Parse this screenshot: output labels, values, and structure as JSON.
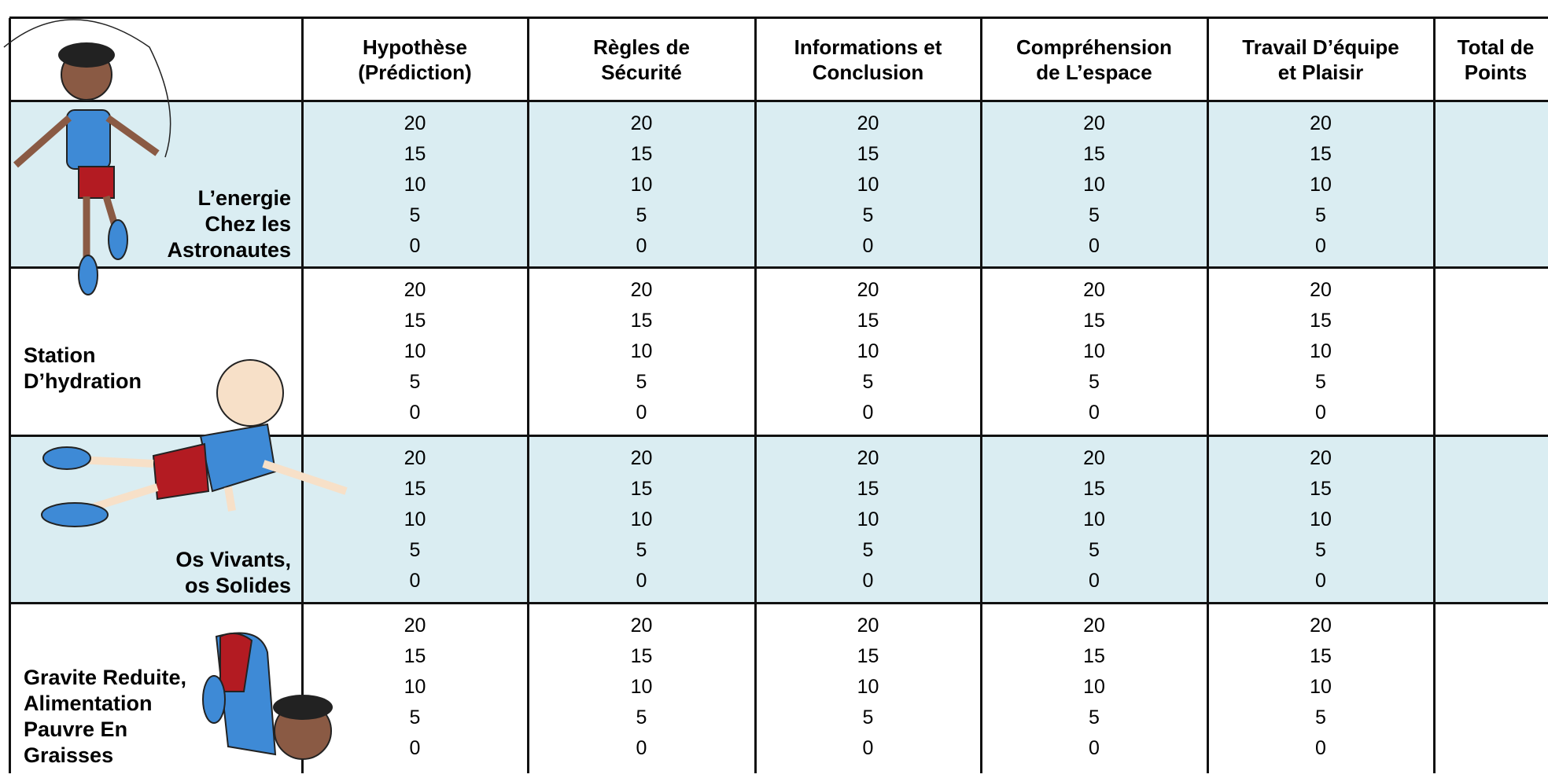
{
  "table": {
    "headers": [
      [
        "Hypothèse",
        "(Prédiction)"
      ],
      [
        "Règles de",
        "Sécurité"
      ],
      [
        "Informations et",
        "Conclusion"
      ],
      [
        "Compréhension",
        "de L’espace"
      ],
      [
        "Travail D’équipe",
        "et Plaisir"
      ],
      [
        "Total de",
        "Points"
      ]
    ],
    "rows": [
      {
        "label": [
          "L’energie",
          "Chez les",
          "Astronautes"
        ],
        "scores": [
          [
            20,
            15,
            10,
            5,
            0
          ],
          [
            20,
            15,
            10,
            5,
            0
          ],
          [
            20,
            15,
            10,
            5,
            0
          ],
          [
            20,
            15,
            10,
            5,
            0
          ],
          [
            20,
            15,
            10,
            5,
            0
          ]
        ]
      },
      {
        "label": [
          "Station",
          "D’hydration"
        ],
        "scores": [
          [
            20,
            15,
            10,
            5,
            0
          ],
          [
            20,
            15,
            10,
            5,
            0
          ],
          [
            20,
            15,
            10,
            5,
            0
          ],
          [
            20,
            15,
            10,
            5,
            0
          ],
          [
            20,
            15,
            10,
            5,
            0
          ]
        ]
      },
      {
        "label": [
          "Os Vivants,",
          "os Solides"
        ],
        "scores": [
          [
            20,
            15,
            10,
            5,
            0
          ],
          [
            20,
            15,
            10,
            5,
            0
          ],
          [
            20,
            15,
            10,
            5,
            0
          ],
          [
            20,
            15,
            10,
            5,
            0
          ],
          [
            20,
            15,
            10,
            5,
            0
          ]
        ]
      },
      {
        "label": [
          "Gravite Reduite,",
          "Alimentation",
          "Pauvre En",
          "Graisses"
        ],
        "scores": [
          [
            20,
            15,
            10,
            5,
            0
          ],
          [
            20,
            15,
            10,
            5,
            0
          ],
          [
            20,
            15,
            10,
            5,
            0
          ],
          [
            20,
            15,
            10,
            5,
            0
          ],
          [
            20,
            15,
            10,
            5,
            0
          ]
        ]
      }
    ]
  }
}
